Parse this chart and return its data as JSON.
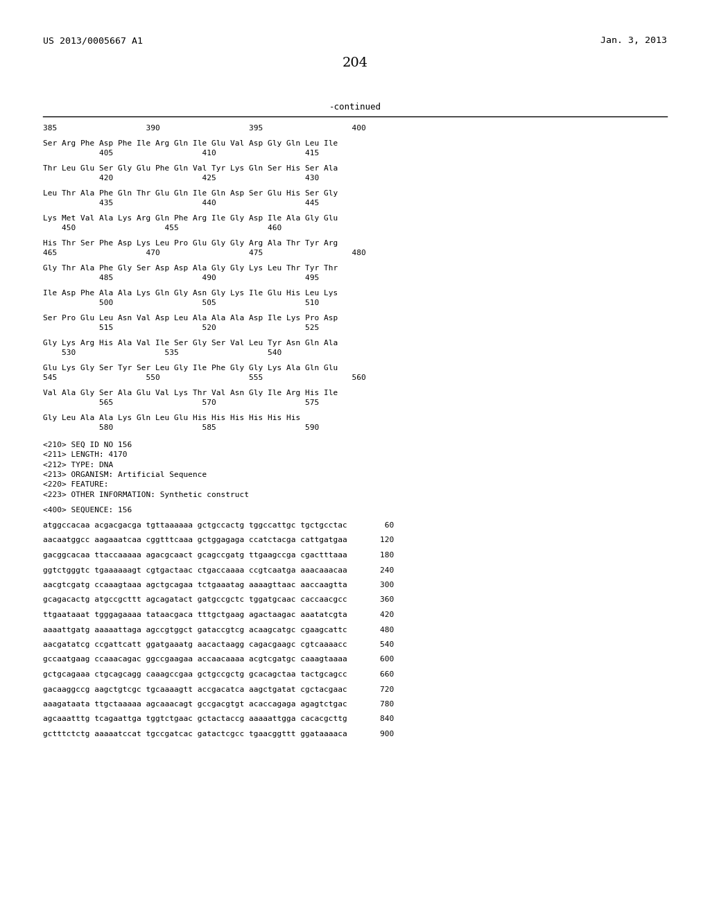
{
  "header_left": "US 2013/0005667 A1",
  "header_right": "Jan. 3, 2013",
  "page_number": "204",
  "continued_label": "-continued",
  "background_color": "#ffffff",
  "text_color": "#000000",
  "sequence_lines": [
    "385                   390                   395                   400",
    "",
    "Ser Arg Phe Asp Phe Ile Arg Gln Ile Glu Val Asp Gly Gln Leu Ile",
    "            405                   410                   415",
    "",
    "Thr Leu Glu Ser Gly Glu Phe Gln Val Tyr Lys Gln Ser His Ser Ala",
    "            420                   425                   430",
    "",
    "Leu Thr Ala Phe Gln Thr Glu Gln Ile Gln Asp Ser Glu His Ser Gly",
    "            435                   440                   445",
    "",
    "Lys Met Val Ala Lys Arg Gln Phe Arg Ile Gly Asp Ile Ala Gly Glu",
    "    450                   455                   460",
    "",
    "His Thr Ser Phe Asp Lys Leu Pro Glu Gly Gly Arg Ala Thr Tyr Arg",
    "465                   470                   475                   480",
    "",
    "Gly Thr Ala Phe Gly Ser Asp Asp Ala Gly Gly Lys Leu Thr Tyr Thr",
    "            485                   490                   495",
    "",
    "Ile Asp Phe Ala Ala Lys Gln Gly Asn Gly Lys Ile Glu His Leu Lys",
    "            500                   505                   510",
    "",
    "Ser Pro Glu Leu Asn Val Asp Leu Ala Ala Ala Asp Ile Lys Pro Asp",
    "            515                   520                   525",
    "",
    "Gly Lys Arg His Ala Val Ile Ser Gly Ser Val Leu Tyr Asn Gln Ala",
    "    530                   535                   540",
    "",
    "Glu Lys Gly Ser Tyr Ser Leu Gly Ile Phe Gly Gly Lys Ala Gln Glu",
    "545                   550                   555                   560",
    "",
    "Val Ala Gly Ser Ala Glu Val Lys Thr Val Asn Gly Ile Arg His Ile",
    "            565                   570                   575",
    "",
    "Gly Leu Ala Ala Lys Gln Leu Glu His His His His His His",
    "            580                   585                   590"
  ],
  "metadata_lines": [
    "<210> SEQ ID NO 156",
    "<211> LENGTH: 4170",
    "<212> TYPE: DNA",
    "<213> ORGANISM: Artificial Sequence",
    "<220> FEATURE:",
    "<223> OTHER INFORMATION: Synthetic construct",
    "",
    "<400> SEQUENCE: 156"
  ],
  "dna_lines": [
    "atggccacaa acgacgacga tgttaaaaaa gctgccactg tggccattgc tgctgcctac        60",
    "",
    "aacaatggcc aagaaatcaa cggtttcaaa gctggagaga ccatctacga cattgatgaa       120",
    "",
    "gacggcacaa ttaccaaaaa agacgcaact gcagccgatg ttgaagccga cgactttaaa       180",
    "",
    "ggtctgggtc tgaaaaaagt cgtgactaac ctgaccaaaa ccgtcaatga aaacaaacaa       240",
    "",
    "aacgtcgatg ccaaagtaaa agctgcagaa tctgaaatag aaaagttaac aaccaagtta       300",
    "",
    "gcagacactg atgccgcttt agcagatact gatgccgctc tggatgcaac caccaacgcc       360",
    "",
    "ttgaataaat tgggagaaaa tataacgaca tttgctgaag agactaagac aaatatcgta       420",
    "",
    "aaaattgatg aaaaattaga agccgtggct gataccgtcg acaagcatgc cgaagcattc       480",
    "",
    "aacgatatcg ccgattcatt ggatgaaatg aacactaagg cagacgaagc cgtcaaaacc       540",
    "",
    "gccaatgaag ccaaacagac ggccgaagaa accaacaaaa acgtcgatgc caaagtaaaa       600",
    "",
    "gctgcagaaa ctgcagcagg caaagccgaa gctgccgctg gcacagctaa tactgcagcc       660",
    "",
    "gacaaggccg aagctgtcgc tgcaaaagtt accgacatca aagctgatat cgctacgaac       720",
    "",
    "aaagataata ttgctaaaaa agcaaacagt gccgacgtgt acaccagaga agagtctgac       780",
    "",
    "agcaaatttg tcagaattga tggtctgaac gctactaccg aaaaattgga cacacgcttg       840",
    "",
    "gctttctctg aaaaatccat tgccgatcac gatactcgcc tgaacggttt ggataaaaca       900"
  ]
}
